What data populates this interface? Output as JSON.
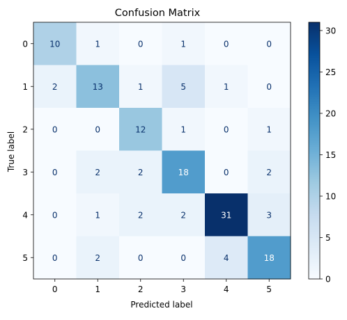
{
  "chart_data": {
    "type": "heatmap",
    "title": "Confusion Matrix",
    "xlabel": "Predicted label",
    "ylabel": "True label",
    "x_categories": [
      "0",
      "1",
      "2",
      "3",
      "4",
      "5"
    ],
    "y_categories": [
      "0",
      "1",
      "2",
      "3",
      "4",
      "5"
    ],
    "matrix": [
      [
        10,
        1,
        0,
        1,
        0,
        0
      ],
      [
        2,
        13,
        1,
        5,
        1,
        0
      ],
      [
        0,
        0,
        12,
        1,
        0,
        1
      ],
      [
        0,
        2,
        2,
        18,
        0,
        2
      ],
      [
        0,
        1,
        2,
        2,
        31,
        3
      ],
      [
        0,
        2,
        0,
        0,
        4,
        18
      ]
    ],
    "colormap": "Blues",
    "colorbar": {
      "min": 0,
      "max": 31,
      "ticks": [
        0,
        5,
        10,
        15,
        20,
        25,
        30
      ]
    },
    "grid": false
  }
}
